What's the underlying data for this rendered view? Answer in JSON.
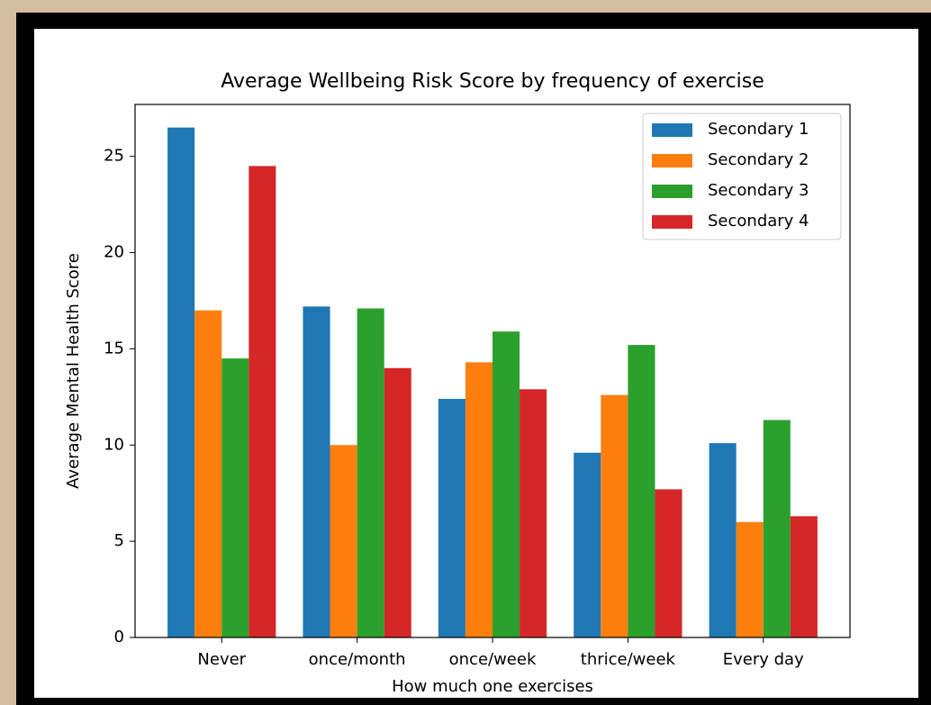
{
  "chart_data": {
    "type": "bar",
    "title": "Average Wellbeing Risk Score by frequency of exercise",
    "x_label": "How much one exercises",
    "y_label": "Average Mental Health Score",
    "categories": [
      "Never",
      "once/month",
      "once/week",
      "thrice/week",
      "Every day"
    ],
    "series": [
      {
        "name": "Secondary 1",
        "color": "#1f77b4",
        "values": [
          26.5,
          17.2,
          12.4,
          9.6,
          10.1
        ]
      },
      {
        "name": "Secondary 2",
        "color": "#ff7f0e",
        "values": [
          17.0,
          10.0,
          14.3,
          12.6,
          6.0
        ]
      },
      {
        "name": "Secondary 3",
        "color": "#2ca02c",
        "values": [
          14.5,
          17.1,
          15.9,
          15.2,
          11.3
        ]
      },
      {
        "name": "Secondary 4",
        "color": "#d62728",
        "values": [
          24.5,
          14.0,
          12.9,
          7.7,
          6.3
        ]
      }
    ],
    "ylim": [
      0,
      27.7
    ],
    "yticks": [
      0,
      5,
      10,
      15,
      20,
      25
    ],
    "legend": "upper right"
  }
}
